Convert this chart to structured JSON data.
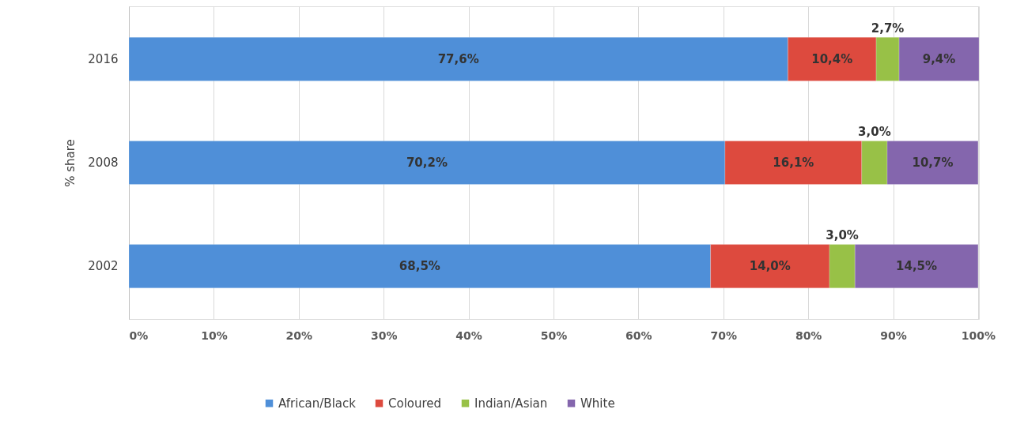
{
  "chart_data": {
    "type": "bar",
    "orientation": "horizontal",
    "stacked": true,
    "ylabel": "% share",
    "categories": [
      "2016",
      "2008",
      "2002"
    ],
    "series": [
      {
        "name": "African/Black",
        "color": "#4f8fd8",
        "values": [
          77.6,
          70.2,
          68.5
        ],
        "value_labels": [
          "77,6%",
          "70,2%",
          "68,5%"
        ]
      },
      {
        "name": "Coloured",
        "color": "#dd4a3e",
        "values": [
          10.4,
          16.1,
          14.0
        ],
        "value_labels": [
          "10,4%",
          "16,1%",
          "14,0%"
        ]
      },
      {
        "name": "Indian/Asian",
        "color": "#98c147",
        "values": [
          2.7,
          3.0,
          3.0
        ],
        "value_labels": [
          "2,7%",
          "3,0%",
          "3,0%"
        ]
      },
      {
        "name": "White",
        "color": "#8466ad",
        "values": [
          9.4,
          10.7,
          14.5
        ],
        "value_labels": [
          "9,4%",
          "10,7%",
          "14,5%"
        ]
      }
    ],
    "xlim": [
      0,
      100.1
    ],
    "xticks": [
      {
        "value": 0,
        "label": "0%"
      },
      {
        "value": 10,
        "label": "10%"
      },
      {
        "value": 20,
        "label": "20%"
      },
      {
        "value": 30,
        "label": "30%"
      },
      {
        "value": 40,
        "label": "40%"
      },
      {
        "value": 50,
        "label": "50%"
      },
      {
        "value": 60,
        "label": "60%"
      },
      {
        "value": 70,
        "label": "70%"
      },
      {
        "value": 80,
        "label": "80%"
      },
      {
        "value": 90,
        "label": "90%"
      },
      {
        "value": 100,
        "label": "100%"
      }
    ],
    "grid": "x",
    "legend": "bottom"
  }
}
